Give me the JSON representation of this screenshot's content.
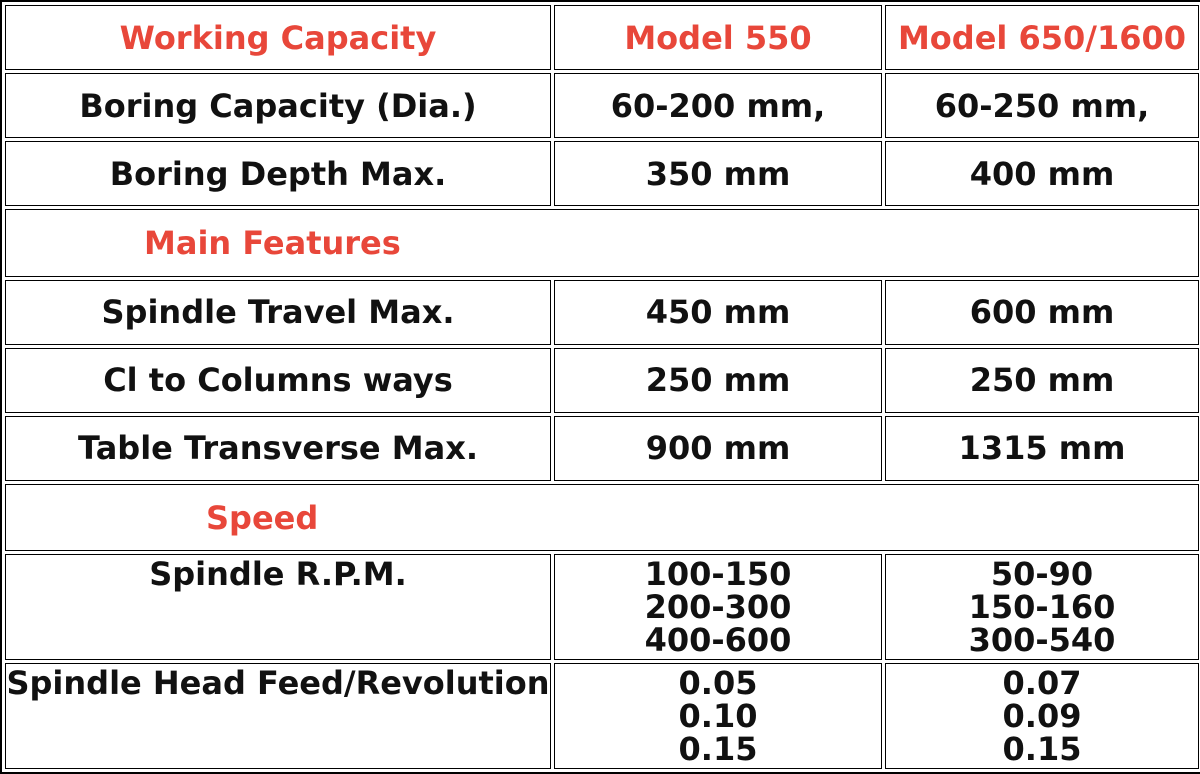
{
  "header": {
    "col1": "Working Capacity",
    "col2": "Model 550",
    "col3": "Model 650/1600"
  },
  "rows_capacity": [
    {
      "label": "Boring Capacity (Dia.)",
      "m550": "60-200 mm,",
      "m650": "60-250 mm,"
    },
    {
      "label": "Boring Depth Max.",
      "m550": "350 mm",
      "m650": "400 mm"
    }
  ],
  "section_features": "Main Features",
  "rows_features": [
    {
      "label": "Spindle Travel Max.",
      "m550": "450 mm",
      "m650": "600 mm"
    },
    {
      "label": "Cl to Columns ways",
      "m550": "250 mm",
      "m650": "250 mm"
    },
    {
      "label": "Table Transverse Max.",
      "m550": "900 mm",
      "m650": "1315 mm"
    }
  ],
  "section_speed": "Speed",
  "rows_speed": [
    {
      "label": "Spindle R.P.M.",
      "m550": [
        "100-150",
        "200-300",
        "400-600"
      ],
      "m650": [
        "50-90",
        "150-160",
        "300-540"
      ]
    },
    {
      "label": "Spindle Head Feed/Revolution",
      "m550": [
        "0.05",
        "0.10",
        "0.15"
      ],
      "m650": [
        "0.07",
        "0.09",
        "0.15"
      ]
    }
  ],
  "colors": {
    "accent": "#e8473a",
    "text": "#111111",
    "border": "#000000"
  }
}
